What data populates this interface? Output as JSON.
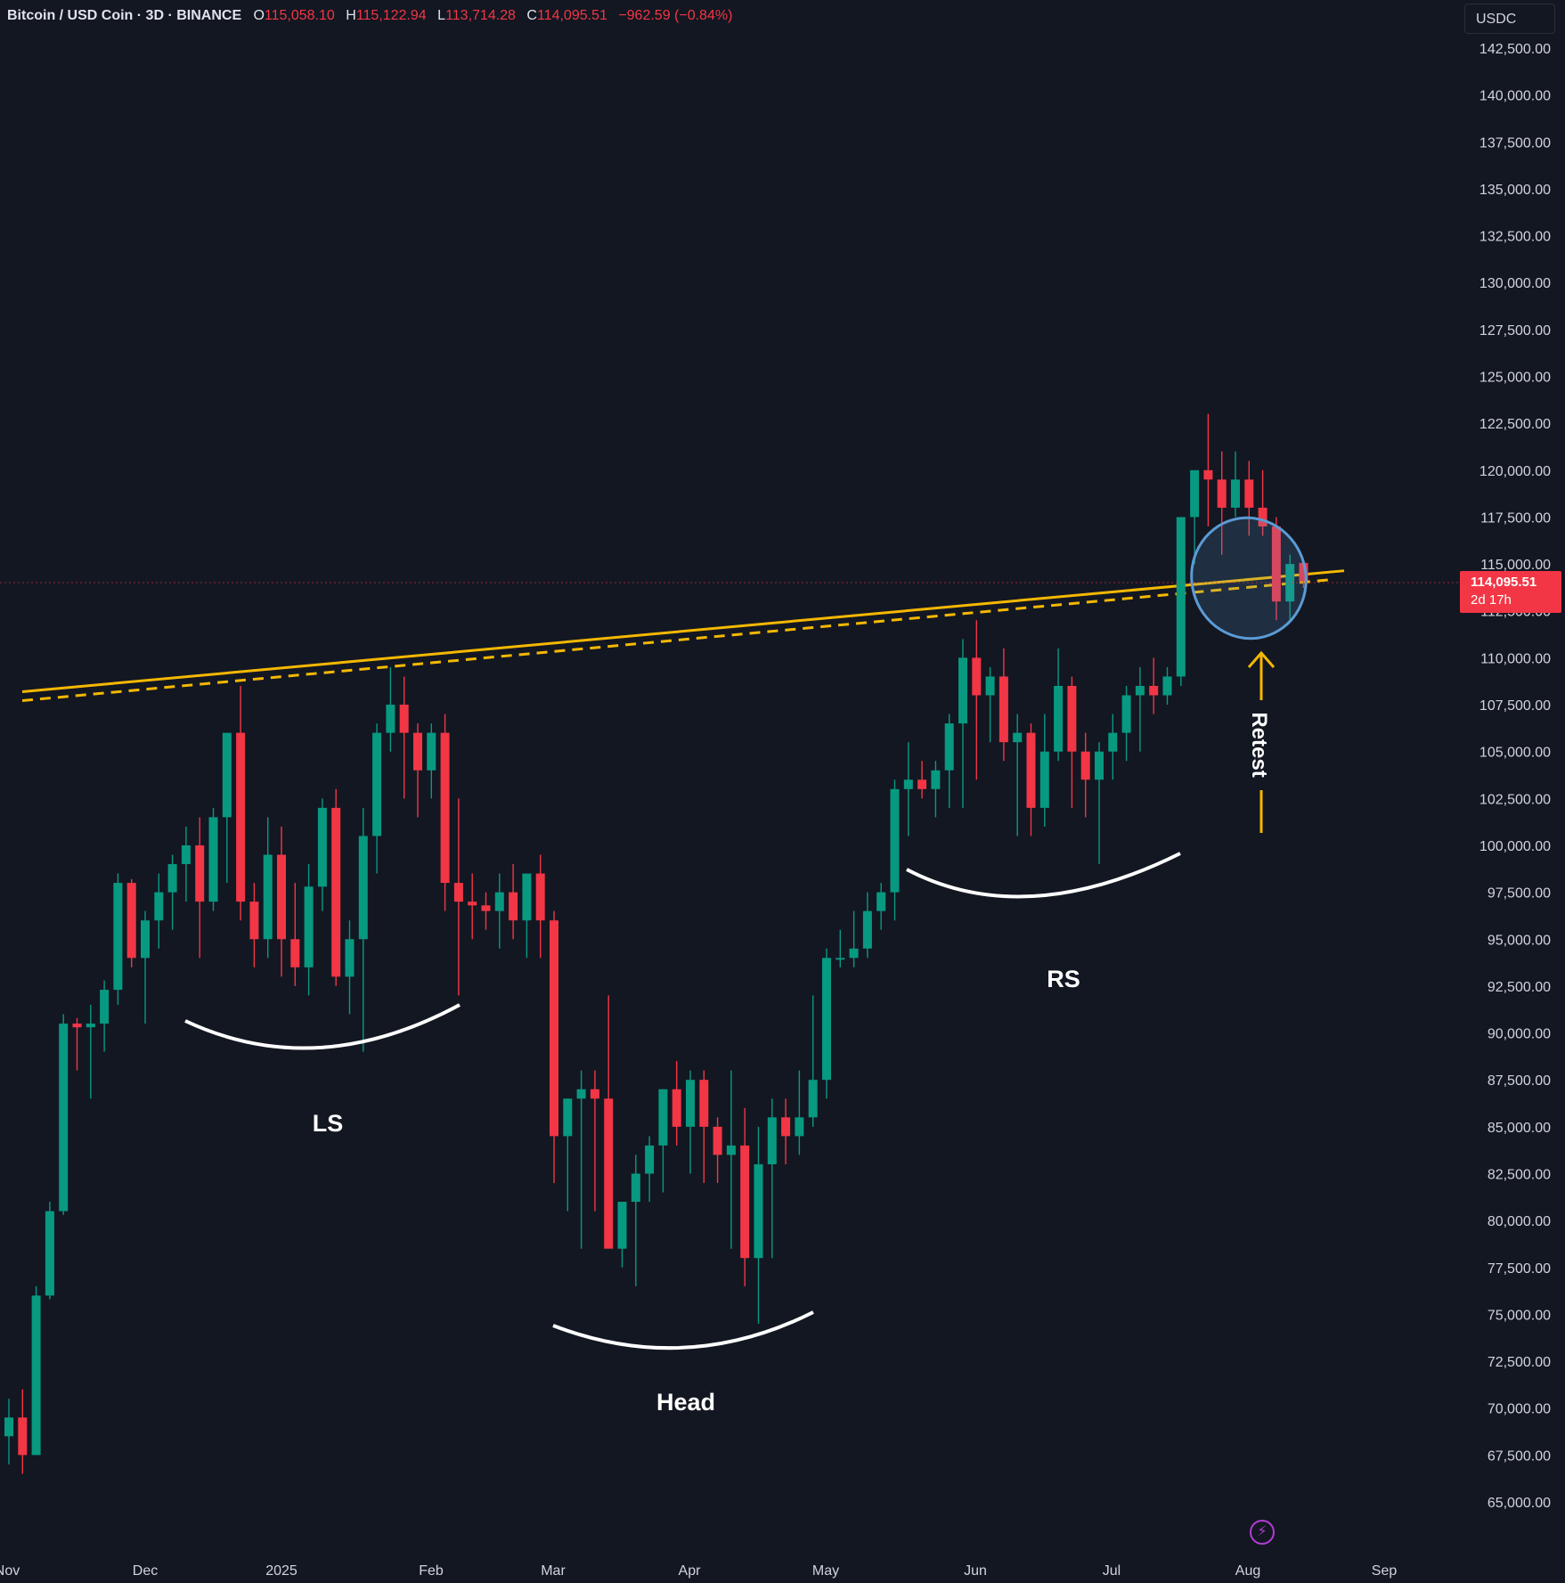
{
  "header": {
    "symbol": "Bitcoin / USD Coin · 3D · BINANCE",
    "open_label": "O",
    "open": "115,058.10",
    "high_label": "H",
    "high": "115,122.94",
    "low_label": "L",
    "low": "113,714.28",
    "close_label": "C",
    "close": "114,095.51",
    "change": "−962.59 (−0.84%)"
  },
  "currency_selector": "USDC",
  "last_price": {
    "value": "114,095.51",
    "countdown": "2d 17h"
  },
  "colors": {
    "background": "#131722",
    "up": "#089981",
    "down": "#f23645",
    "neckline": "#f5b800",
    "circle": "#5b9bd5"
  },
  "icons": {
    "bolt": "lightning-bolt-icon"
  },
  "chart_data": {
    "type": "candlestick",
    "title": "Bitcoin / USD Coin · 3D · BINANCE",
    "ylim": [
      65000,
      142500
    ],
    "y_ticks": [
      "142,500.00",
      "140,000.00",
      "137,500.00",
      "135,000.00",
      "132,500.00",
      "130,000.00",
      "127,500.00",
      "125,000.00",
      "122,500.00",
      "120,000.00",
      "117,500.00",
      "115,000.00",
      "112,500.00",
      "110,000.00",
      "107,500.00",
      "105,000.00",
      "102,500.00",
      "100,000.00",
      "97,500.00",
      "95,000.00",
      "92,500.00",
      "90,000.00",
      "87,500.00",
      "85,000.00",
      "82,500.00",
      "80,000.00",
      "77,500.00",
      "75,000.00",
      "72,500.00",
      "70,000.00",
      "67,500.00",
      "65,000.00"
    ],
    "x_ticks": [
      "Nov",
      "Dec",
      "2025",
      "Feb",
      "Mar",
      "Apr",
      "May",
      "Jun",
      "Jul",
      "Aug",
      "Sep"
    ],
    "series_ohlc": [
      [
        68500,
        70500,
        67000,
        69500
      ],
      [
        69500,
        71000,
        66500,
        67500
      ],
      [
        67500,
        76500,
        67500,
        76000
      ],
      [
        76000,
        81000,
        75800,
        80500
      ],
      [
        80500,
        91000,
        80300,
        90500
      ],
      [
        90500,
        90800,
        88000,
        90300
      ],
      [
        90300,
        91500,
        86500,
        90500
      ],
      [
        90500,
        92800,
        89000,
        92300
      ],
      [
        92300,
        98500,
        91500,
        98000
      ],
      [
        98000,
        98200,
        93500,
        94000
      ],
      [
        94000,
        96500,
        90500,
        96000
      ],
      [
        96000,
        98500,
        94500,
        97500
      ],
      [
        97500,
        99500,
        95500,
        99000
      ],
      [
        99000,
        101000,
        97000,
        100000
      ],
      [
        100000,
        101500,
        94000,
        97000
      ],
      [
        97000,
        102000,
        96500,
        101500
      ],
      [
        101500,
        104500,
        98000,
        106000
      ],
      [
        106000,
        108500,
        96000,
        97000
      ],
      [
        97000,
        98000,
        93500,
        95000
      ],
      [
        95000,
        101500,
        94000,
        99500
      ],
      [
        99500,
        101000,
        93000,
        95000
      ],
      [
        95000,
        98000,
        92500,
        93500
      ],
      [
        93500,
        99000,
        92000,
        97800
      ],
      [
        97800,
        102500,
        96500,
        102000
      ],
      [
        102000,
        103000,
        92500,
        93000
      ],
      [
        93000,
        96000,
        91000,
        95000
      ],
      [
        95000,
        102000,
        89000,
        100500
      ],
      [
        100500,
        106500,
        98500,
        106000
      ],
      [
        106000,
        109500,
        105000,
        107500
      ],
      [
        107500,
        109000,
        102500,
        106000
      ],
      [
        106000,
        106500,
        101500,
        104000
      ],
      [
        104000,
        106500,
        102500,
        106000
      ],
      [
        106000,
        107000,
        96500,
        98000
      ],
      [
        98000,
        102500,
        92000,
        97000
      ],
      [
        97000,
        98500,
        95000,
        96800
      ],
      [
        96800,
        97500,
        95500,
        96500
      ],
      [
        96500,
        98500,
        94500,
        97500
      ],
      [
        97500,
        99000,
        95000,
        96000
      ],
      [
        96000,
        98500,
        94000,
        98500
      ],
      [
        98500,
        99500,
        94000,
        96000
      ],
      [
        96000,
        96500,
        82000,
        84500
      ],
      [
        84500,
        86500,
        80500,
        86500
      ],
      [
        86500,
        88000,
        78500,
        87000
      ],
      [
        87000,
        88000,
        80500,
        86500
      ],
      [
        86500,
        92000,
        79000,
        78500
      ],
      [
        78500,
        81000,
        77500,
        81000
      ],
      [
        81000,
        83500,
        76500,
        82500
      ],
      [
        82500,
        84500,
        81000,
        84000
      ],
      [
        84000,
        87000,
        81500,
        87000
      ],
      [
        87000,
        88500,
        84000,
        85000
      ],
      [
        85000,
        88000,
        82500,
        87500
      ],
      [
        87500,
        88000,
        82000,
        85000
      ],
      [
        85000,
        85500,
        82000,
        83500
      ],
      [
        83500,
        88000,
        78500,
        84000
      ],
      [
        84000,
        86000,
        76500,
        78000
      ],
      [
        78000,
        85000,
        74500,
        83000
      ],
      [
        83000,
        86500,
        78000,
        85500
      ],
      [
        85500,
        86500,
        83000,
        84500
      ],
      [
        84500,
        88000,
        83500,
        85500
      ],
      [
        85500,
        92000,
        85000,
        87500
      ],
      [
        87500,
        94500,
        86500,
        94000
      ],
      [
        94000,
        95500,
        93500,
        94000
      ],
      [
        94000,
        96500,
        93500,
        94500
      ],
      [
        94500,
        97500,
        94000,
        96500
      ],
      [
        96500,
        98000,
        95500,
        97500
      ],
      [
        97500,
        103500,
        96000,
        103000
      ],
      [
        103000,
        105500,
        100500,
        103500
      ],
      [
        103500,
        104500,
        102500,
        103000
      ],
      [
        103000,
        104500,
        101500,
        104000
      ],
      [
        104000,
        107000,
        102000,
        106500
      ],
      [
        106500,
        111000,
        102000,
        110000
      ],
      [
        110000,
        112000,
        103500,
        108000
      ],
      [
        108000,
        109500,
        105500,
        109000
      ],
      [
        109000,
        110500,
        104500,
        105500
      ],
      [
        105500,
        107000,
        100500,
        106000
      ],
      [
        106000,
        106500,
        100500,
        102000
      ],
      [
        102000,
        107000,
        101000,
        105000
      ],
      [
        105000,
        110500,
        104500,
        108500
      ],
      [
        108500,
        109000,
        102000,
        105000
      ],
      [
        105000,
        106000,
        101500,
        103500
      ],
      [
        103500,
        105500,
        99000,
        105000
      ],
      [
        105000,
        107000,
        103500,
        106000
      ],
      [
        106000,
        108500,
        104500,
        108000
      ],
      [
        108000,
        109500,
        105000,
        108500
      ],
      [
        108500,
        110000,
        107000,
        108000
      ],
      [
        108000,
        109500,
        107500,
        109000
      ],
      [
        109000,
        117500,
        108500,
        117500
      ],
      [
        117500,
        119500,
        115000,
        120000
      ],
      [
        120000,
        123000,
        117000,
        119500
      ],
      [
        119500,
        121000,
        115500,
        118000
      ],
      [
        118000,
        121000,
        117500,
        119500
      ],
      [
        119500,
        120500,
        116500,
        118000
      ],
      [
        118000,
        120000,
        116500,
        117000
      ],
      [
        117000,
        117500,
        112000,
        113000
      ],
      [
        113000,
        115500,
        112000,
        115000
      ],
      [
        115058.1,
        115122.94,
        113714.28,
        114095.51
      ]
    ],
    "neckline": {
      "style": "solid + dashed",
      "from": [
        "Nov",
        108000
      ],
      "to": [
        "Aug",
        113500
      ]
    },
    "annotations": [
      {
        "text": "LS",
        "anchor": "Dec"
      },
      {
        "text": "Head",
        "anchor": "Apr"
      },
      {
        "text": "RS",
        "anchor": "Jun"
      },
      {
        "text": "Retest",
        "anchor": "Aug"
      }
    ]
  }
}
